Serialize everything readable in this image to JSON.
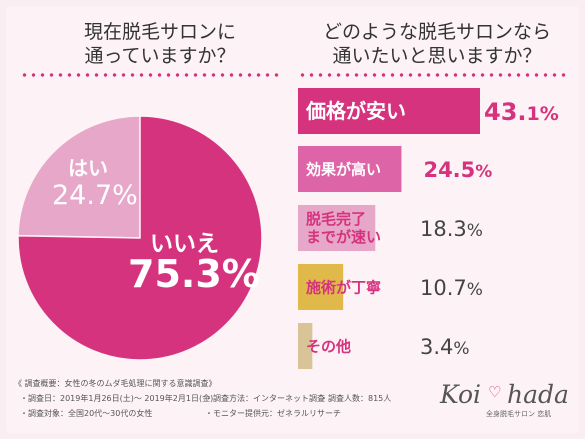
{
  "questions": {
    "left": "現在脱毛サロンに\n通っていますか？",
    "right": "どのような脱毛サロンなら\n通いたいと思いますか？"
  },
  "colors": {
    "accent": "#d6337f",
    "pie_yes": "#e6a7c8",
    "pie_no": "#d6337f",
    "bar1": "#d6337f",
    "bar2": "#dd64a6",
    "bar3": "#e6a7c8",
    "bar4": "#e1b94a",
    "bar5": "#d8c497"
  },
  "chart_data": [
    {
      "type": "pie",
      "slices": [
        {
          "label": "はい",
          "value": 24.7,
          "display": "24.7%"
        },
        {
          "label": "いいえ",
          "value": 75.3,
          "display": "75.3%"
        }
      ]
    },
    {
      "type": "bar",
      "orientation": "horizontal",
      "categories": [
        "価格が安い",
        "効果が高い",
        "脱毛完了\nまでが速い",
        "施術が丁寧",
        "その他"
      ],
      "values": [
        43.1,
        24.5,
        18.3,
        10.7,
        3.4
      ],
      "labels": [
        {
          "num": "43.",
          "dec": "1%"
        },
        {
          "num": "24.5",
          "dec": "%"
        },
        {
          "num": "18.3",
          "dec": "%"
        },
        {
          "num": "10.7",
          "dec": "%"
        },
        {
          "num": "3.4",
          "dec": "%"
        }
      ]
    }
  ],
  "footer": {
    "line1": "《 調査概要：女性の冬のムダ毛処理に関する意識調査》",
    "date": "・調査日：2019年1月26日(土)〜 2019年2月1日(金)",
    "method": "・調査方法：インターネット調査",
    "count": "・調査人数：815人",
    "target": "・調査対象：全国20代〜30代の女性",
    "provider": "・モニター提供元：ゼネラルリサーチ"
  },
  "logo": {
    "left": "Koi",
    "right": "hada",
    "tagline": "全身脱毛サロン 恋肌"
  }
}
